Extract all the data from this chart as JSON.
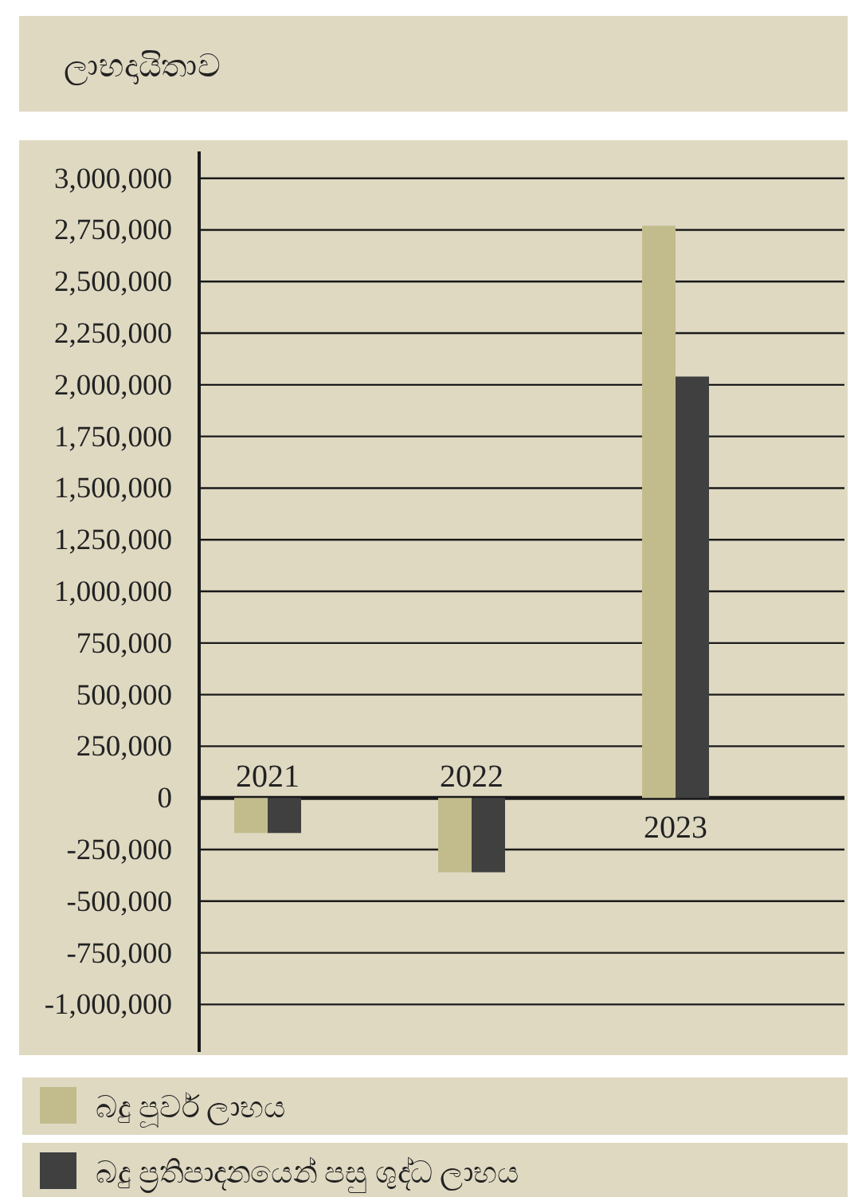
{
  "chart_data": {
    "type": "bar",
    "title": "ලාභදායිතාව",
    "categories": [
      "2021",
      "2022",
      "2023"
    ],
    "series": [
      {
        "name": "බදු පූර්ව ලාභය",
        "color": "#c2bc8d",
        "values": [
          -170000,
          -360000,
          2770000
        ]
      },
      {
        "name": "බදු ප්‍රතිපාදනයෙන් පසු ශුද්ධ ලාභය",
        "color": "#404040",
        "values": [
          -170000,
          -360000,
          2040000
        ]
      }
    ],
    "ylim": [
      -1230000,
      3130000
    ],
    "yticks": [
      {
        "value": -1000000,
        "label": "-1,000,000"
      },
      {
        "value": -750000,
        "label": "-750,000"
      },
      {
        "value": -500000,
        "label": "-500,000"
      },
      {
        "value": -250000,
        "label": "-250,000"
      },
      0,
      {
        "value": 250000,
        "label": "250,000"
      },
      {
        "value": 500000,
        "label": "500,000"
      },
      {
        "value": 750000,
        "label": "750,000"
      },
      {
        "value": 1000000,
        "label": "1,000,000"
      },
      {
        "value": 1250000,
        "label": "1,250,000"
      },
      {
        "value": 1500000,
        "label": "1,500,000"
      },
      {
        "value": 1750000,
        "label": "1,750,000"
      },
      {
        "value": 2000000,
        "label": "2,000,000"
      },
      {
        "value": 2250000,
        "label": "2,250,000"
      },
      {
        "value": 2500000,
        "label": "2,500,000"
      },
      {
        "value": 2750000,
        "label": "2,750,000"
      },
      {
        "value": 3000000,
        "label": "3,000,000"
      }
    ],
    "grid": "y",
    "legend": "bottom"
  }
}
